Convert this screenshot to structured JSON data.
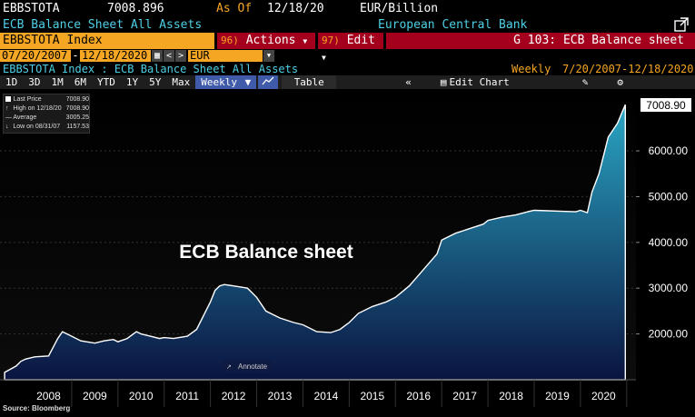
{
  "header": {
    "ticker": "EBBSTOTA",
    "last_value": "7008.896",
    "as_of_label": "As Of",
    "as_of_date": "12/18/20",
    "units": "EUR/Billion",
    "security_name": "ECB Balance Sheet All Assets",
    "source_name": "European Central Bank"
  },
  "command_bar": {
    "index_label": "EBBSTOTA Index",
    "actions_num": "96)",
    "actions_label": "Actions",
    "edit_num": "97)",
    "edit_label": "Edit",
    "function_title": "G 103: ECB Balance sheet"
  },
  "date_range": {
    "start": "07/20/2007",
    "end": "12/18/2020",
    "currency": "EUR"
  },
  "subtitle": {
    "description": "EBBSTOTA Index : ECB Balance Sheet All Assets",
    "frequency": "Weekly",
    "range": "7/20/2007-12/18/2020"
  },
  "toolbar": {
    "periods": [
      "1D",
      "3D",
      "1M",
      "6M",
      "YTD",
      "1Y",
      "5Y",
      "Max"
    ],
    "frequency_select": "Weekly",
    "table_label": "Table",
    "edit_chart_label": "Edit Chart"
  },
  "legend": {
    "items": [
      {
        "label": "Last Price",
        "value": "7008.90"
      },
      {
        "label": "High on 12/18/20",
        "value": "7008.90"
      },
      {
        "label": "Average",
        "value": "3005.25"
      },
      {
        "label": "Low on 08/31/07",
        "value": "1157.53"
      }
    ]
  },
  "annotate_label": "Annotate",
  "source_note": "Source: Bloomberg",
  "colors": {
    "accent_orange": "#f5a623",
    "title_cyan": "#4ed0e6",
    "command_red": "#a4001e",
    "area_top": "#2aa6c4",
    "area_bottom": "#0a1440"
  },
  "chart_data": {
    "type": "area",
    "annotation": "ECB Balance sheet",
    "last_value_label": "7008.90",
    "ylim": [
      1000,
      7350
    ],
    "xlim": [
      2007.45,
      2021.2
    ],
    "y_ticks": [
      "2000.00",
      "3000.00",
      "4000.00",
      "5000.00",
      "6000.00"
    ],
    "y_tick_values": [
      2000,
      3000,
      4000,
      5000,
      6000
    ],
    "x_tick_labels": [
      "2008",
      "2009",
      "2010",
      "2011",
      "2012",
      "2013",
      "2014",
      "2015",
      "2016",
      "2017",
      "2018",
      "2019",
      "2020"
    ],
    "x_tick_values": [
      2008.5,
      2009.5,
      2010.5,
      2011.5,
      2012.5,
      2013.5,
      2014.5,
      2015.5,
      2016.5,
      2017.5,
      2018.5,
      2019.5,
      2020.5
    ],
    "series": [
      {
        "x": [
          2007.55,
          2007.8,
          2007.9,
          2008.0,
          2008.2,
          2008.5,
          2008.7,
          2008.8,
          2008.9,
          2009.0,
          2009.2,
          2009.5,
          2009.7,
          2009.9,
          2010.0,
          2010.2,
          2010.4,
          2010.5,
          2010.7,
          2010.9,
          2011.0,
          2011.2,
          2011.5,
          2011.7,
          2011.8,
          2011.9,
          2012.0,
          2012.1,
          2012.2,
          2012.3,
          2012.5,
          2012.8,
          2013.0,
          2013.2,
          2013.5,
          2013.8,
          2014.0,
          2014.3,
          2014.6,
          2014.8,
          2015.0,
          2015.2,
          2015.5,
          2015.8,
          2016.0,
          2016.3,
          2016.6,
          2016.9,
          2017.0,
          2017.3,
          2017.6,
          2017.9,
          2018.0,
          2018.3,
          2018.6,
          2018.9,
          2019.0,
          2019.3,
          2019.6,
          2019.9,
          2020.0,
          2020.15,
          2020.25,
          2020.4,
          2020.6,
          2020.8,
          2020.97
        ],
        "values": [
          1160,
          1300,
          1400,
          1450,
          1500,
          1520,
          1900,
          2050,
          2000,
          1950,
          1850,
          1800,
          1850,
          1880,
          1830,
          1900,
          2050,
          2000,
          1950,
          1900,
          1920,
          1900,
          1950,
          2100,
          2300,
          2500,
          2700,
          2950,
          3050,
          3080,
          3050,
          3000,
          2800,
          2500,
          2350,
          2250,
          2200,
          2050,
          2030,
          2100,
          2250,
          2450,
          2600,
          2700,
          2800,
          3050,
          3400,
          3750,
          4050,
          4200,
          4300,
          4400,
          4480,
          4550,
          4600,
          4680,
          4700,
          4690,
          4680,
          4670,
          4700,
          4650,
          5100,
          5500,
          6300,
          6600,
          7009
        ]
      }
    ]
  }
}
